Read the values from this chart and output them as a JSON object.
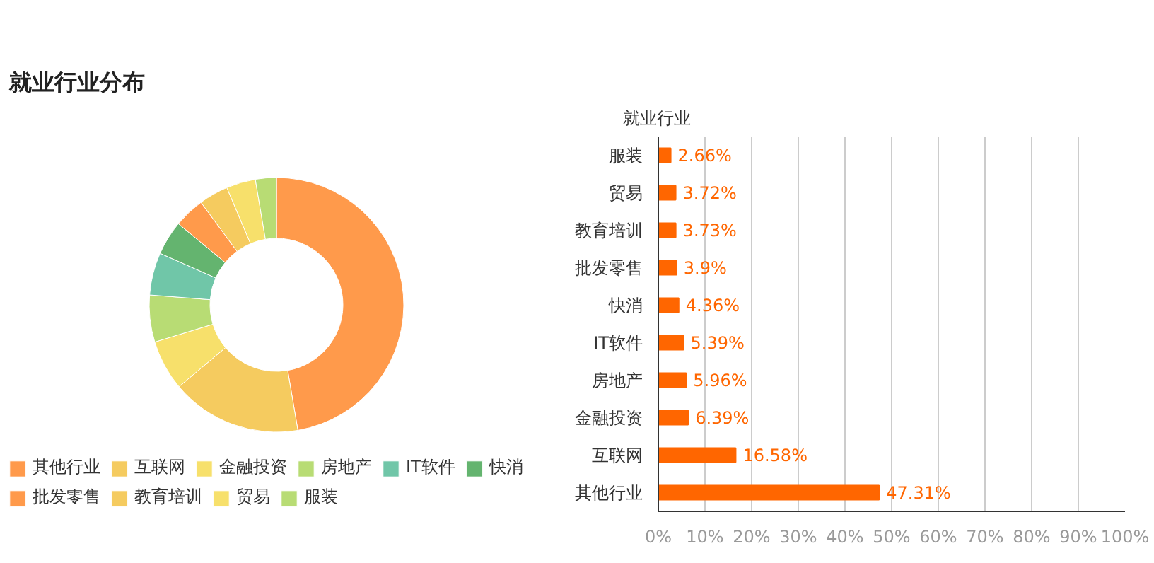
{
  "chart_data": [
    {
      "type": "donut",
      "title": "就业行业分布",
      "categories": [
        "其他行业",
        "互联网",
        "金融投资",
        "房地产",
        "IT软件",
        "快消",
        "批发零售",
        "教育培训",
        "贸易",
        "服装"
      ],
      "values": [
        47.31,
        16.58,
        6.39,
        5.96,
        5.39,
        4.36,
        3.9,
        3.73,
        3.72,
        2.66
      ],
      "colors": [
        "#ff9a4b",
        "#f5cb5f",
        "#f7e06b",
        "#b8dc74",
        "#70c6a8",
        "#64b46f",
        "#ff9a4b",
        "#f5cb5f",
        "#f7e06b",
        "#b8dc74"
      ],
      "legend": "bottom"
    },
    {
      "type": "bar",
      "orientation": "horizontal",
      "ylabel": "就业行业",
      "categories": [
        "服装",
        "贸易",
        "教育培训",
        "批发零售",
        "快消",
        "IT软件",
        "房地产",
        "金融投资",
        "互联网",
        "其他行业"
      ],
      "values": [
        2.66,
        3.72,
        3.73,
        3.9,
        4.36,
        5.39,
        5.96,
        6.39,
        16.58,
        47.31
      ],
      "value_labels": [
        "2.66%",
        "3.72%",
        "3.73%",
        "3.9%",
        "4.36%",
        "5.39%",
        "5.96%",
        "6.39%",
        "16.58%",
        "47.31%"
      ],
      "color": "#ff6600",
      "xlim": [
        0,
        100
      ],
      "xticks": [
        {
          "value": 0,
          "label": "0%"
        },
        {
          "value": 10,
          "label": "10%"
        },
        {
          "value": 20,
          "label": "20%"
        },
        {
          "value": 30,
          "label": "30%"
        },
        {
          "value": 40,
          "label": "40%"
        },
        {
          "value": 50,
          "label": "50%"
        },
        {
          "value": 60,
          "label": "60%"
        },
        {
          "value": 70,
          "label": "70%"
        },
        {
          "value": 80,
          "label": "80%"
        },
        {
          "value": 90,
          "label": "90%"
        },
        {
          "value": 100,
          "label": "100%"
        }
      ],
      "grid": "x"
    }
  ]
}
